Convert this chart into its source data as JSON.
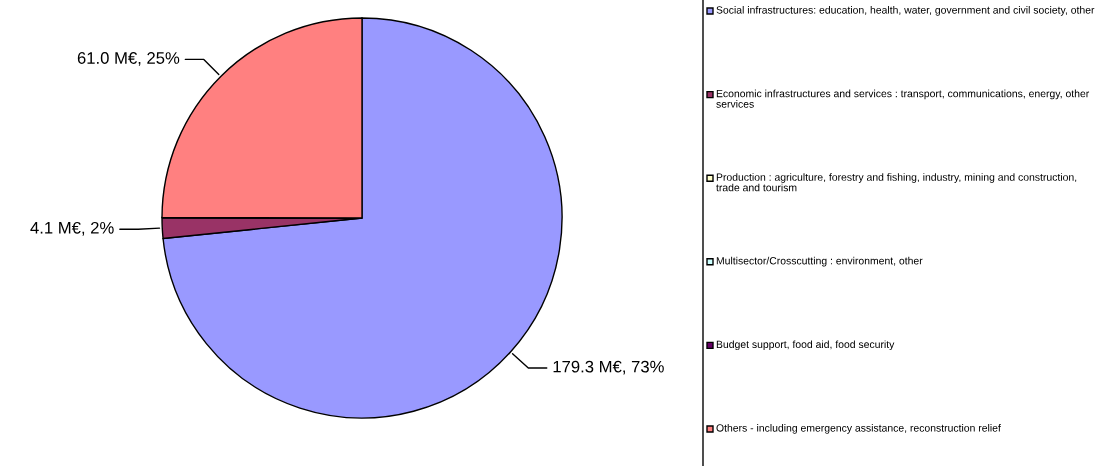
{
  "chart_data": {
    "type": "pie",
    "categories": [
      "Social infrastructures: education, health, water, government and civil society, other",
      "Economic infrastructures and services : transport, communications, energy, other services",
      "Production : agriculture, forestry and fishing, industry, mining and construction, trade and tourism",
      "Multisector/Crosscutting : environment, other",
      "Budget support, food aid, food security",
      "Others - including emergency assistance, reconstruction relief"
    ],
    "values": [
      179.3,
      4.1,
      0,
      0,
      0,
      61.0
    ],
    "value_labels": [
      "179.3 M€, 73%",
      "4.1 M€, 2%",
      null,
      null,
      null,
      "61.0 M€, 25%"
    ],
    "colors": [
      "#9999ff",
      "#993366",
      "#ffffcc",
      "#ccffff",
      "#660066",
      "#ff8080"
    ],
    "legend": "right"
  }
}
